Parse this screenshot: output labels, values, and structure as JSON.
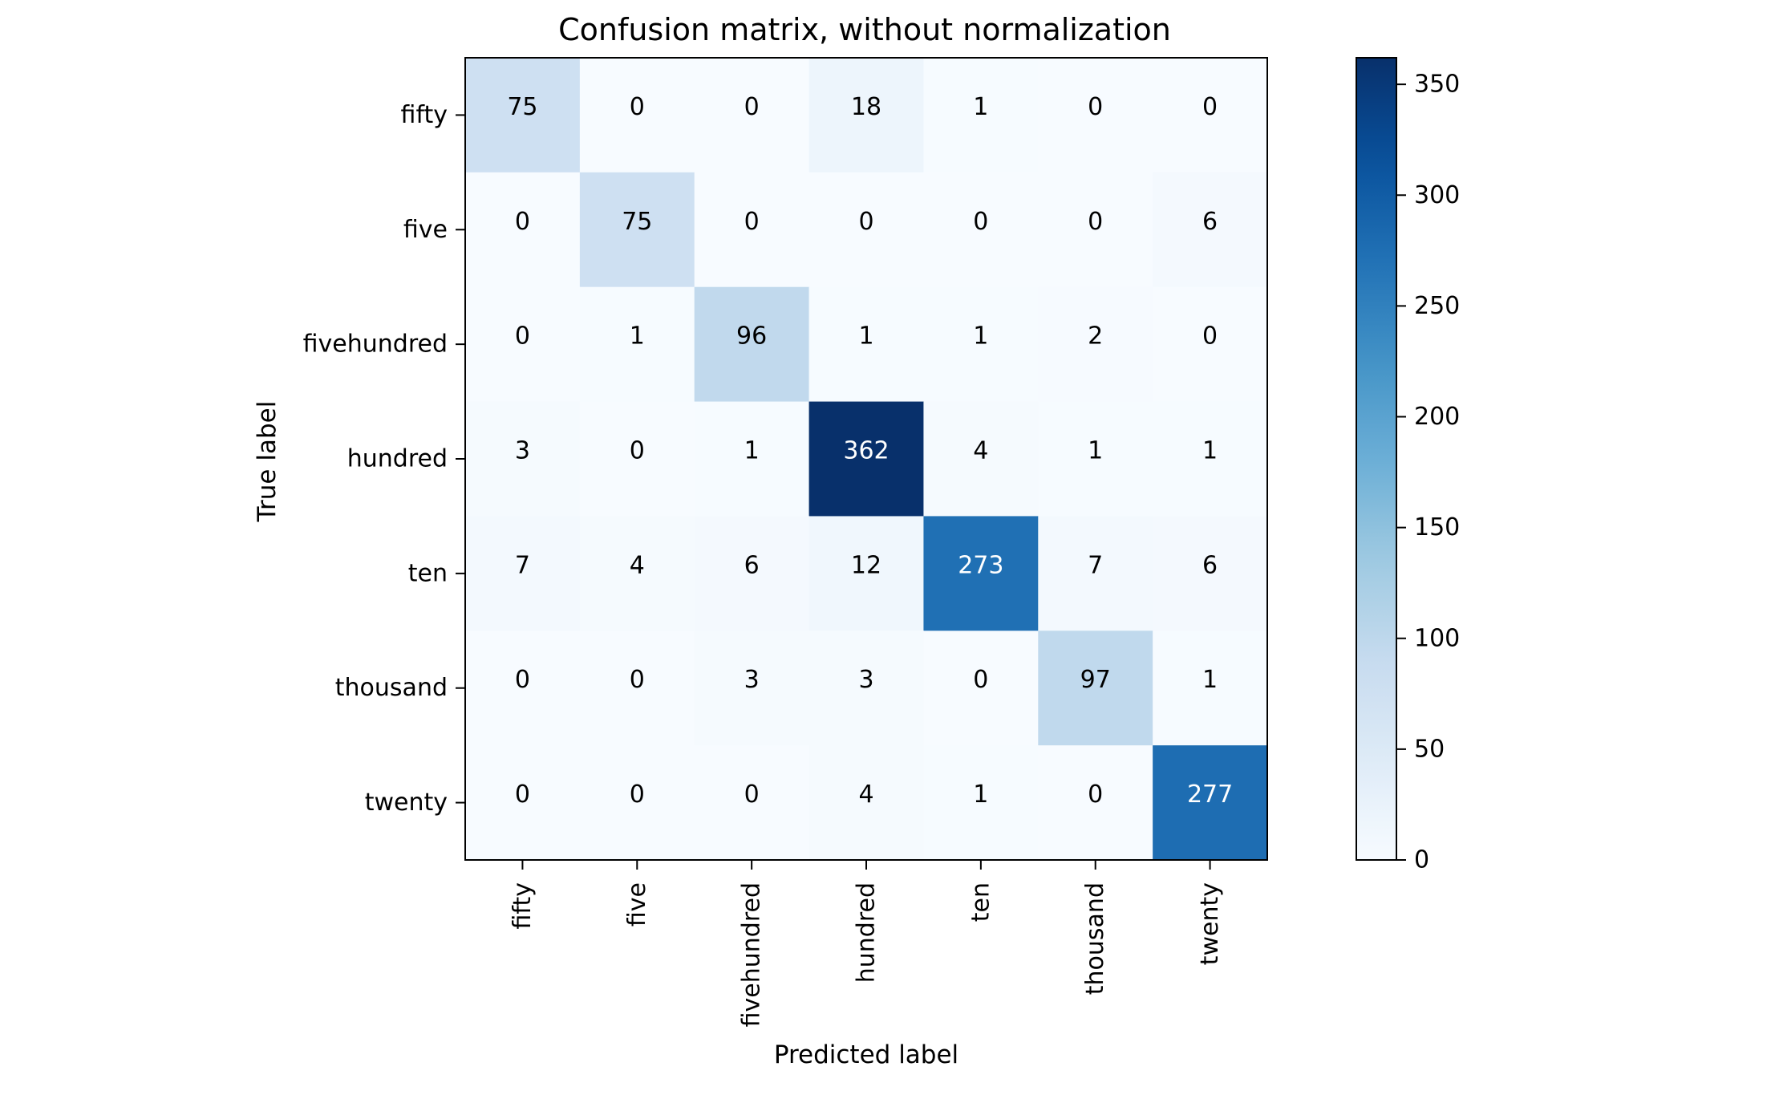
{
  "chart_data": {
    "type": "heatmap",
    "title": "Confusion matrix, without normalization",
    "xlabel": "Predicted label",
    "ylabel": "True label",
    "x_categories": [
      "fifty",
      "five",
      "fivehundred",
      "hundred",
      "ten",
      "thousand",
      "twenty"
    ],
    "y_categories": [
      "fifty",
      "five",
      "fivehundred",
      "hundred",
      "ten",
      "thousand",
      "twenty"
    ],
    "values": [
      [
        75,
        0,
        0,
        18,
        1,
        0,
        0
      ],
      [
        0,
        75,
        0,
        0,
        0,
        0,
        6
      ],
      [
        0,
        1,
        96,
        1,
        1,
        2,
        0
      ],
      [
        3,
        0,
        1,
        362,
        4,
        1,
        1
      ],
      [
        7,
        4,
        6,
        12,
        273,
        7,
        6
      ],
      [
        0,
        0,
        3,
        3,
        0,
        97,
        1
      ],
      [
        0,
        0,
        0,
        4,
        1,
        0,
        277
      ]
    ],
    "colormap": "Blues",
    "color_range": [
      0,
      362
    ],
    "colorbar_ticks": [
      0,
      50,
      100,
      150,
      200,
      250,
      300,
      350
    ],
    "colors": {
      "low": "#f7fbff",
      "high": "#08306b",
      "text_dark": "#000000",
      "text_light": "#ffffff"
    },
    "grid": false
  }
}
